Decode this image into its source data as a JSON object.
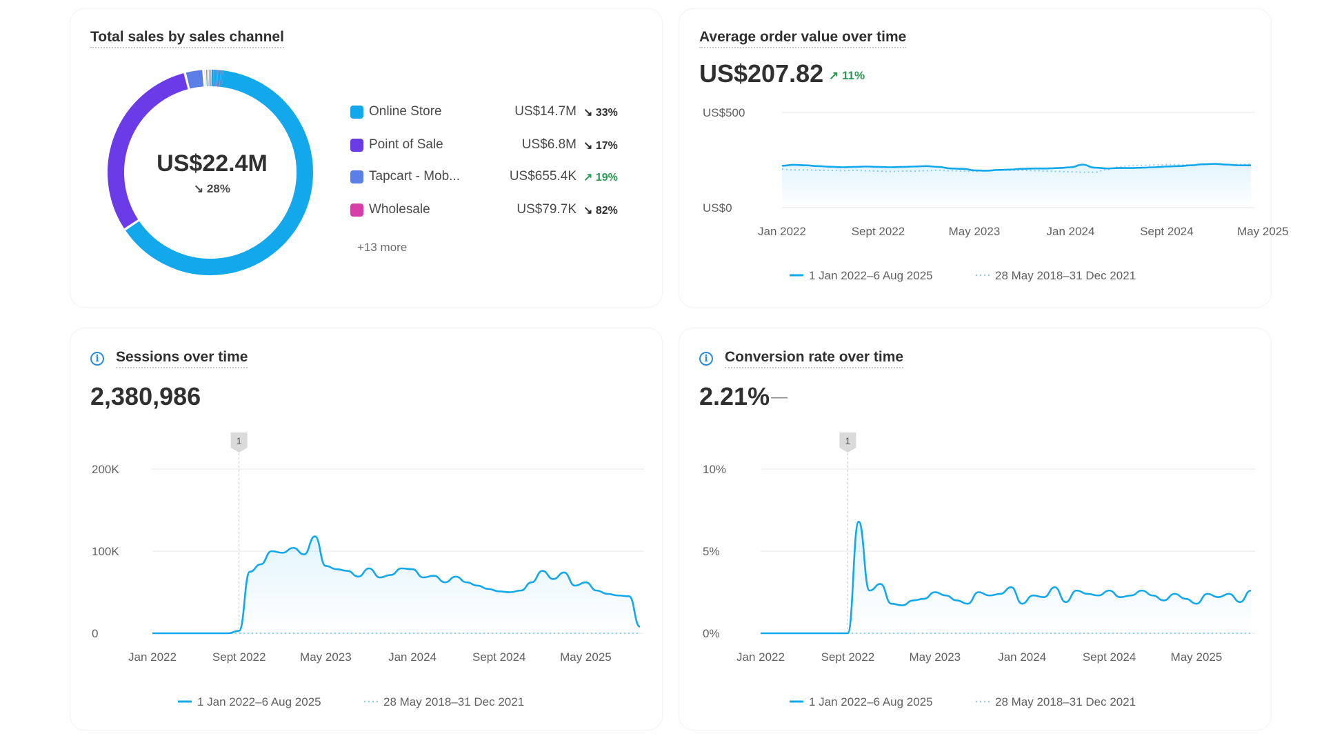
{
  "sales_by_channel": {
    "title": "Total sales by sales channel",
    "total": "US$22.4M",
    "total_delta": "28%",
    "total_delta_icon": "arrow-down-right-icon",
    "more": "+13 more",
    "colors": {
      "online_store": "#13a7ec",
      "point_of_sale": "#6c3be8",
      "tapcart": "#5b7fe6",
      "wholesale": "#d63fa8"
    },
    "channels": [
      {
        "name": "Online Store",
        "value": "US$14.7M",
        "delta": "33%",
        "direction": "down",
        "color": "#13a7ec"
      },
      {
        "name": "Point of Sale",
        "value": "US$6.8M",
        "delta": "17%",
        "direction": "down",
        "color": "#6c3be8"
      },
      {
        "name": "Tapcart - Mob...",
        "value": "US$655.4K",
        "delta": "19%",
        "direction": "up",
        "color": "#5b7fe6"
      },
      {
        "name": "Wholesale",
        "value": "US$79.7K",
        "delta": "82%",
        "direction": "down",
        "color": "#d63fa8"
      }
    ],
    "chart_data": {
      "type": "pie",
      "labels": [
        "Online Store",
        "Point of Sale",
        "Tapcart - Mob...",
        "Wholesale",
        "other"
      ],
      "values": [
        14.7,
        6.8,
        0.655,
        0.0797,
        0.16
      ],
      "units": "US$M",
      "other_slice_colors": [
        "#19b58e",
        "#a15cf0",
        "#2f9ce6",
        "#e25ca0",
        "#7f6be0",
        "#3fb8d8",
        "#b56ce4",
        "#5ca8f2",
        "#e07ab8",
        "#6e7cf0",
        "#48c4a8",
        "#9d7cf4",
        "#2fb2e2"
      ]
    }
  },
  "aov": {
    "title": "Average order value over time",
    "value": "US$207.82",
    "delta": "11%",
    "delta_icon": "arrow-up-right-icon",
    "chart_data": {
      "type": "line",
      "y_ticks": [
        "US$500",
        "US$0"
      ],
      "ylim": [
        0,
        500
      ],
      "x_ticks": [
        "Jan 2022",
        "Sept 2022",
        "May 2023",
        "Jan 2024",
        "Sept 2024",
        "May 2025"
      ],
      "series": [
        {
          "name": "1 Jan 2022–6 Aug 2025",
          "style": "solid",
          "color": "#13a7ec",
          "values": [
            220,
            225,
            222,
            218,
            215,
            212,
            214,
            216,
            214,
            212,
            214,
            216,
            218,
            214,
            206,
            204,
            196,
            194,
            198,
            200,
            204,
            206,
            206,
            208,
            212,
            226,
            210,
            206,
            208,
            208,
            210,
            212,
            216,
            218,
            222,
            228,
            230,
            226,
            222,
            222
          ]
        },
        {
          "name": "28 May 2018–31 Dec 2021",
          "style": "dotted",
          "color": "#8fd0f2",
          "values": [
            202,
            198,
            198,
            196,
            196,
            194,
            196,
            194,
            192,
            190,
            192,
            192,
            194,
            196,
            194,
            192,
            190,
            196,
            198,
            196,
            196,
            194,
            192,
            190,
            188,
            186,
            186,
            200,
            214,
            220,
            222,
            224,
            226,
            226,
            224,
            226,
            228,
            226,
            228,
            228
          ]
        }
      ]
    }
  },
  "sessions": {
    "title": "Sessions over time",
    "value": "2,380,986",
    "chart_data": {
      "type": "area",
      "y_ticks": [
        "200K",
        "100K",
        "0"
      ],
      "ylim": [
        0,
        200000
      ],
      "x_ticks": [
        "Jan 2022",
        "Sept 2022",
        "May 2023",
        "Jan 2024",
        "Sept 2024",
        "May 2025"
      ],
      "annotation": {
        "label": "1",
        "x_month": 8
      },
      "series": [
        {
          "name": "1 Jan 2022–6 Aug 2025",
          "style": "solid",
          "color": "#13a7ec",
          "values": [
            0,
            0,
            0,
            0,
            0,
            0,
            0,
            0,
            3000,
            75000,
            84000,
            100000,
            98000,
            104000,
            96000,
            118000,
            82000,
            78000,
            76000,
            69000,
            79000,
            68000,
            71000,
            79000,
            78000,
            68000,
            70000,
            62000,
            69000,
            62000,
            58000,
            54000,
            51000,
            50000,
            52000,
            62000,
            76000,
            66000,
            74000,
            58000,
            62000,
            52000,
            48000,
            46000,
            45000,
            8000
          ]
        },
        {
          "name": "28 May 2018–31 Dec 2021",
          "style": "dotted",
          "color": "#8fd0f2",
          "values": [
            0,
            0,
            0,
            0,
            0,
            0,
            0,
            0,
            0,
            0,
            0,
            0,
            0,
            0,
            0,
            0,
            0,
            0,
            0,
            0,
            0,
            0,
            0,
            0,
            0,
            0,
            0,
            0,
            0,
            0,
            0,
            0,
            0,
            0,
            0,
            0,
            0,
            0,
            0,
            0,
            0,
            0,
            0,
            0,
            0,
            0
          ]
        }
      ]
    }
  },
  "conversion": {
    "title": "Conversion rate over time",
    "value": "2.21%",
    "delta": "—",
    "chart_data": {
      "type": "line",
      "y_ticks": [
        "10%",
        "5%",
        "0%"
      ],
      "ylim": [
        0,
        10
      ],
      "x_ticks": [
        "Jan 2022",
        "Sept 2022",
        "May 2023",
        "Jan 2024",
        "Sept 2024",
        "May 2025"
      ],
      "annotation": {
        "label": "1",
        "x_month": 8
      },
      "series": [
        {
          "name": "1 Jan 2022–6 Aug 2025",
          "style": "solid",
          "color": "#13a7ec",
          "values": [
            0,
            0,
            0,
            0,
            0,
            0,
            0,
            0,
            0,
            6.8,
            2.6,
            3.0,
            1.8,
            1.7,
            2.0,
            2.1,
            2.5,
            2.3,
            2.0,
            1.8,
            2.5,
            2.3,
            2.4,
            2.8,
            1.8,
            2.3,
            2.2,
            2.8,
            1.9,
            2.6,
            2.4,
            2.3,
            2.6,
            2.2,
            2.3,
            2.6,
            2.3,
            2.0,
            2.4,
            2.1,
            1.8,
            2.4,
            2.2,
            2.4,
            1.9,
            2.6
          ]
        },
        {
          "name": "28 May 2018–31 Dec 2021",
          "style": "dotted",
          "color": "#8fd0f2",
          "values": [
            0,
            0,
            0,
            0,
            0,
            0,
            0,
            0,
            0,
            0,
            0,
            0,
            0,
            0,
            0,
            0,
            0,
            0,
            0,
            0,
            0,
            0,
            0,
            0,
            0,
            0,
            0,
            0,
            0,
            0,
            0,
            0,
            0,
            0,
            0,
            0,
            0,
            0,
            0,
            0,
            0,
            0,
            0,
            0,
            0,
            0
          ]
        }
      ]
    }
  }
}
